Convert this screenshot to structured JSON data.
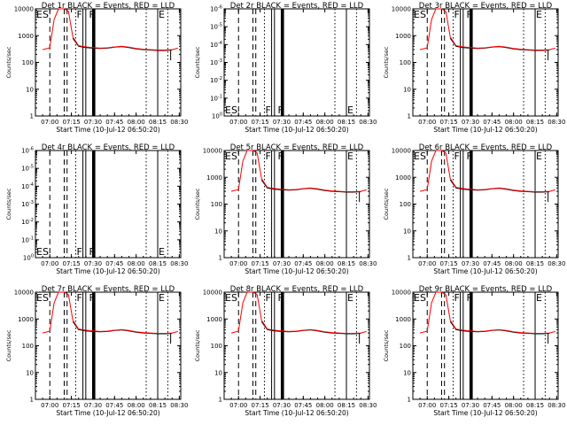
{
  "chart_data": [
    {
      "type": "line",
      "title": "Det 1r BLACK = Events, RED = LLD",
      "ylog": true,
      "ylim": [
        1,
        10000
      ],
      "yticks": [
        "1",
        "10",
        "100",
        "1000",
        "10000"
      ],
      "xticks": [
        "07:00",
        "07:15",
        "07:30",
        "07:45",
        "08:00",
        "08:15",
        "08:30"
      ],
      "xlabel": "Start Time (10-Jul-12 06:50:20)",
      "ylabel": "Counts/sec",
      "labels": [
        "ES",
        "F",
        "F",
        "E"
      ]
    },
    {
      "type": "line",
      "title": "Det 2r BLACK = Events, RED = LLD",
      "ylog": true,
      "ylim": [
        1.0,
        1e-06
      ],
      "nodata": true,
      "yticks": [
        "10^0",
        "10^-1",
        "10^-2",
        "10^-3",
        "10^-4",
        "10^-5",
        "10^-6"
      ],
      "xticks": [
        "07:00",
        "07:15",
        "07:30",
        "07:45",
        "08:00",
        "08:15",
        "08:30"
      ],
      "xlabel": "Start Time (10-Jul-12 06:50:20)",
      "ylabel": "Counts/sec",
      "labels": [
        "ES",
        "F",
        "F",
        "E"
      ]
    },
    {
      "type": "line",
      "title": "Det 3r BLACK = Events, RED = LLD",
      "ylog": true,
      "ylim": [
        1,
        10000
      ],
      "yticks": [
        "1",
        "10",
        "100",
        "1000",
        "10000"
      ],
      "xticks": [
        "07:00",
        "07:15",
        "07:30",
        "07:45",
        "08:00",
        "08:15",
        "08:30"
      ],
      "xlabel": "Start Time (10-Jul-12 06:50:20)",
      "ylabel": "Counts/sec",
      "labels": [
        "ES",
        "F",
        "F",
        "E"
      ]
    },
    {
      "type": "line",
      "title": "Det 4r BLACK = Events, RED = LLD",
      "ylog": true,
      "ylim": [
        1.0,
        1e-06
      ],
      "nodata": true,
      "yticks": [
        "10^0",
        "10^-1",
        "10^-2",
        "10^-3",
        "10^-4",
        "10^-5",
        "10^-6"
      ],
      "xticks": [
        "07:00",
        "07:15",
        "07:30",
        "07:45",
        "08:00",
        "08:15",
        "08:30"
      ],
      "xlabel": "Start Time (10-Jul-12 06:50:20)",
      "ylabel": "Counts/sec",
      "labels": [
        "ES",
        "F",
        "F",
        "E"
      ]
    },
    {
      "type": "line",
      "title": "Det 5r BLACK = Events, RED = LLD",
      "ylog": true,
      "ylim": [
        1,
        10000
      ],
      "yticks": [
        "1",
        "10",
        "100",
        "1000",
        "10000"
      ],
      "xticks": [
        "07:00",
        "07:15",
        "07:30",
        "07:45",
        "08:00",
        "08:15",
        "08:30"
      ],
      "xlabel": "Start Time (10-Jul-12 06:50:20)",
      "ylabel": "Counts/sec",
      "labels": [
        "ES",
        "F",
        "F",
        "E"
      ]
    },
    {
      "type": "line",
      "title": "Det 6r BLACK = Events, RED = LLD",
      "ylog": true,
      "ylim": [
        1,
        10000
      ],
      "yticks": [
        "1",
        "10",
        "100",
        "1000",
        "10000"
      ],
      "xticks": [
        "07:00",
        "07:15",
        "07:30",
        "07:45",
        "08:00",
        "08:15",
        "08:30"
      ],
      "xlabel": "Start Time (10-Jul-12 06:50:20)",
      "ylabel": "Counts/sec",
      "labels": [
        "ES",
        "F",
        "F",
        "E"
      ]
    },
    {
      "type": "line",
      "title": "Det 7r BLACK = Events, RED = LLD",
      "ylog": true,
      "ylim": [
        1,
        10000
      ],
      "yticks": [
        "1",
        "10",
        "100",
        "1000",
        "10000"
      ],
      "xticks": [
        "07:00",
        "07:15",
        "07:30",
        "07:45",
        "08:00",
        "08:15",
        "08:30"
      ],
      "xlabel": "Start Time (10-Jul-12 06:50:20)",
      "ylabel": "Counts/sec",
      "labels": [
        "ES",
        "F",
        "F",
        "E"
      ]
    },
    {
      "type": "line",
      "title": "Det 8r BLACK = Events, RED = LLD",
      "ylog": true,
      "ylim": [
        1,
        10000
      ],
      "yticks": [
        "1",
        "10",
        "100",
        "1000",
        "10000"
      ],
      "xticks": [
        "07:00",
        "07:15",
        "07:30",
        "07:45",
        "08:00",
        "08:15",
        "08:30"
      ],
      "xlabel": "Start Time (10-Jul-12 06:50:20)",
      "ylabel": "Counts/sec",
      "labels": [
        "ES",
        "F",
        "F",
        "E"
      ]
    },
    {
      "type": "line",
      "title": "Det 9r BLACK = Events, RED = LLD",
      "ylog": true,
      "ylim": [
        1,
        10000
      ],
      "yticks": [
        "1",
        "10",
        "100",
        "1000",
        "10000"
      ],
      "xticks": [
        "07:00",
        "07:15",
        "07:30",
        "07:45",
        "08:00",
        "08:15",
        "08:30"
      ],
      "xlabel": "Start Time (10-Jul-12 06:50:20)",
      "ylabel": "Counts/sec",
      "labels": [
        "ES",
        "F",
        "F",
        "E"
      ]
    }
  ],
  "series_values": {
    "times": [
      "06:55",
      "07:00",
      "07:03",
      "07:06",
      "07:08",
      "07:10",
      "07:13",
      "07:16",
      "07:20",
      "07:25",
      "07:30",
      "07:35",
      "07:40",
      "07:45",
      "07:50",
      "07:55",
      "08:00",
      "08:05",
      "08:10",
      "08:15",
      "08:20",
      "08:25",
      "08:29"
    ],
    "lld": [
      300,
      350,
      4000,
      10000,
      10000,
      10000,
      8000,
      900,
      420,
      380,
      360,
      340,
      350,
      380,
      400,
      370,
      330,
      310,
      300,
      290,
      290,
      300,
      340
    ],
    "events": [
      null,
      null,
      null,
      null,
      null,
      null,
      null,
      800,
      400,
      360,
      340,
      330,
      340,
      370,
      390,
      360,
      320,
      300,
      290,
      280,
      280,
      290,
      null
    ]
  },
  "colors": {
    "lld": "#ff0000",
    "events": "#000000"
  }
}
